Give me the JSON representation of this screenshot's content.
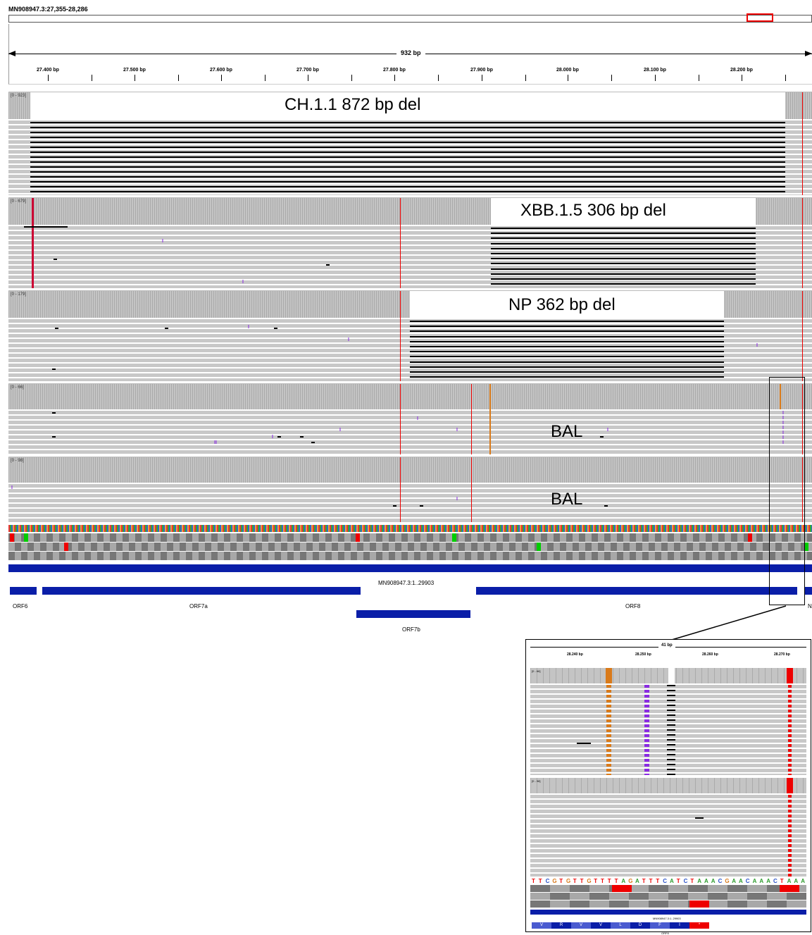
{
  "locus": "MN908947.3:27,355-28,286",
  "span": "932 bp",
  "ticks": [
    "27.400 bp",
    "27.500 bp",
    "27.600 bp",
    "27.700 bp",
    "27.800 bp",
    "27.900 bp",
    "28.000 bp",
    "28.100 bp",
    "28.200 bp"
  ],
  "tracks": [
    {
      "range": "[0 - 923]",
      "label": "CH.1.1 872 bp del"
    },
    {
      "range": "[0 - 679]",
      "label": "XBB.1.5 306 bp del"
    },
    {
      "range": "[0 - 179]",
      "label": "NP 362 bp del"
    },
    {
      "range": "[0 - 66]",
      "label": "BAL"
    },
    {
      "range": "[0 - 98]",
      "label": "BAL"
    }
  ],
  "genome_label": "MN908947.3:1..29903",
  "genes": [
    "ORF6",
    "ORF7a",
    "ORF7b",
    "ORF8",
    "N"
  ],
  "inset": {
    "span": "41 bp",
    "ticks": [
      "28.240 bp",
      "28.250 bp",
      "28.260 bp",
      "28.270 bp"
    ],
    "ranges": [
      "[0 - 66]",
      "[0 - 98]"
    ],
    "bases": [
      "T",
      "T",
      "C",
      "G",
      "T",
      "G",
      "T",
      "T",
      "G",
      "T",
      "T",
      "T",
      "T",
      "A",
      "G",
      "A",
      "T",
      "T",
      "T",
      "C",
      "A",
      "T",
      "C",
      "T",
      "A",
      "A",
      "A",
      "C",
      "G",
      "A",
      "A",
      "C",
      "A",
      "A",
      "A",
      "C",
      "T",
      "A",
      "A",
      "A"
    ],
    "genome_label": "MN908947.3:1..29903",
    "gene_label": "ORF8",
    "aa": [
      "V",
      "R",
      "V",
      "V",
      "L",
      "D",
      "F",
      "I",
      "*"
    ]
  }
}
